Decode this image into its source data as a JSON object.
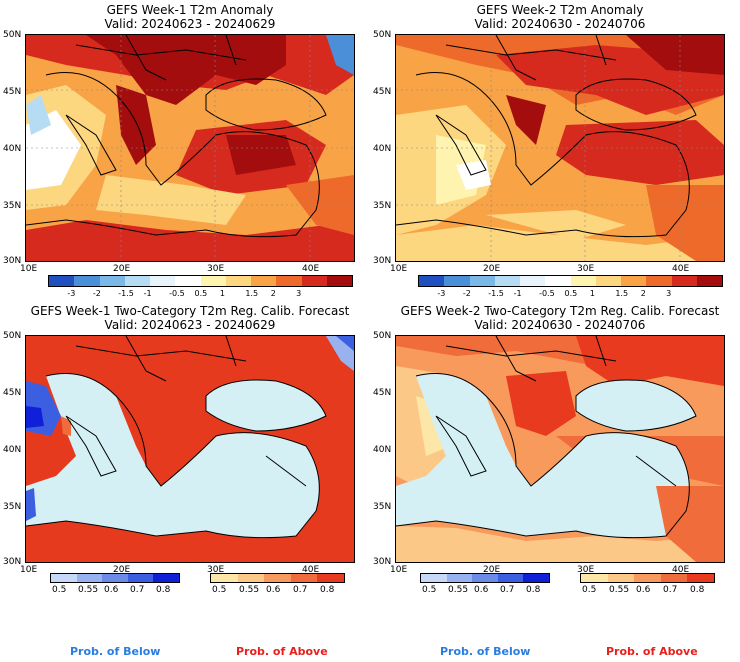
{
  "panels": [
    {
      "id": "p1",
      "title": "GEFS Week-1 T2m Anomaly",
      "valid": "Valid: 20240623 - 20240629"
    },
    {
      "id": "p2",
      "title": "GEFS Week-2 T2m Anomaly",
      "valid": "Valid: 20240630 - 20240706"
    },
    {
      "id": "p3",
      "title": "GEFS Week-1 Two-Category T2m Reg. Calib. Forecast",
      "valid": "Valid: 20240623 - 20240629"
    },
    {
      "id": "p4",
      "title": "GEFS Week-2 Two-Category T2m Reg. Calib. Forecast",
      "valid": "Valid: 20240630 - 20240706"
    }
  ],
  "axes": {
    "lat": [
      "50N",
      "45N",
      "40N",
      "35N",
      "30N"
    ],
    "lon": [
      "10E",
      "20E",
      "30E",
      "40E"
    ]
  },
  "anomaly_scale": {
    "labels": [
      "-3",
      "-2",
      "-1.5",
      "-1",
      "-0.5",
      "0.5",
      "1",
      "1.5",
      "2",
      "3"
    ],
    "colors": [
      "#2050c0",
      "#4a8fd8",
      "#7ab8e8",
      "#b6dcf4",
      "#e8f4fb",
      "#ffffff",
      "#fff3b0",
      "#fdd680",
      "#f9a347",
      "#ee6a2b",
      "#d72a1e",
      "#a30d0d"
    ]
  },
  "prob_scale": {
    "labels": [
      "0.5",
      "0.55",
      "0.6",
      "0.7",
      "0.8"
    ],
    "below_colors": [
      "#c8d8f8",
      "#98b2f0",
      "#6a8ce8",
      "#3c5ee0",
      "#1020d8"
    ],
    "above_colors": [
      "#fde7a8",
      "#fbc888",
      "#f79a5c",
      "#f06c3a",
      "#e83a1e"
    ],
    "below_label": "Prob. of Below",
    "above_label": "Prob. of Above"
  },
  "colors": {
    "sea_light": "#d5f0f4",
    "red": "#e63a1e",
    "dark_red": "#a61010"
  }
}
